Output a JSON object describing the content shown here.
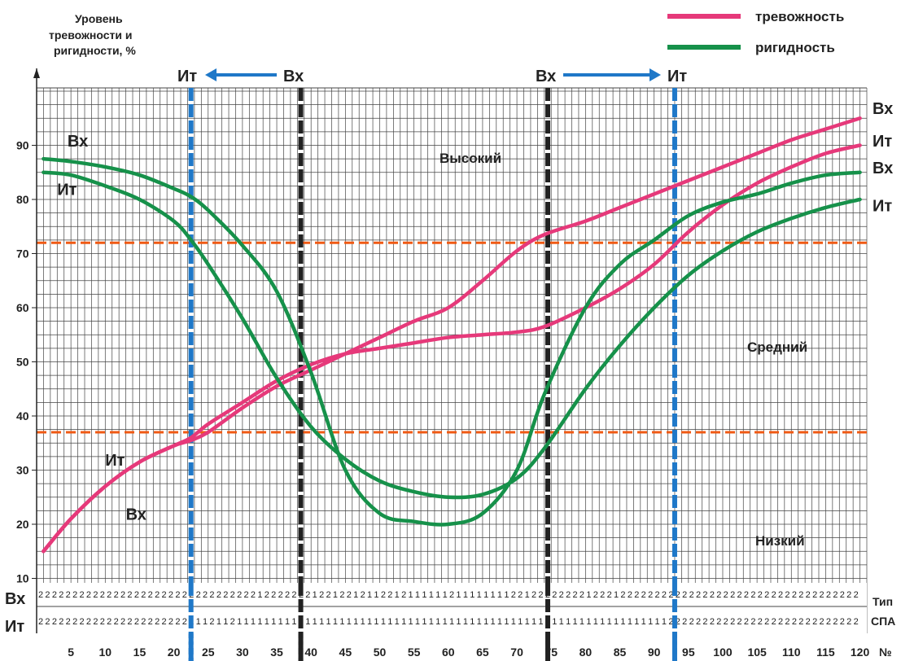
{
  "chart_data": {
    "type": "line",
    "ylabel": "Уровень тревожности и ригидности, %",
    "xlabel": "№",
    "x_ticks": [
      5,
      10,
      15,
      20,
      25,
      30,
      35,
      40,
      45,
      50,
      55,
      60,
      65,
      70,
      75,
      80,
      85,
      90,
      95,
      100,
      105,
      110,
      115,
      120
    ],
    "y_ticks": [
      10,
      20,
      30,
      40,
      50,
      60,
      70,
      80,
      90
    ],
    "xlim": [
      0,
      121
    ],
    "ylim": [
      0,
      100
    ],
    "thresholds": [
      {
        "value": 72,
        "color": "#f05a14"
      },
      {
        "value": 37,
        "color": "#f05a14"
      }
    ],
    "vlines": [
      {
        "x": 22.5,
        "color": "#1f78c8"
      },
      {
        "x": 38.5,
        "color": "#222222"
      },
      {
        "x": 74.5,
        "color": "#222222"
      },
      {
        "x": 93,
        "color": "#1f78c8"
      }
    ],
    "zone_labels": {
      "high": "Высокий",
      "mid": "Средний",
      "low": "Низкий"
    },
    "series": [
      {
        "name": "тревожность",
        "line_label": "Вх",
        "color": "#e6397a",
        "x": [
          1,
          5,
          10,
          15,
          20,
          22.5,
          25,
          30,
          35,
          40,
          45,
          50,
          55,
          60,
          65,
          70,
          74,
          80,
          85,
          90,
          95,
          100,
          105,
          110,
          115,
          120
        ],
        "y": [
          15,
          21,
          27,
          31.5,
          34.5,
          35.5,
          37,
          41.5,
          45.5,
          48.5,
          51.5,
          54.5,
          57.5,
          60,
          65,
          70.5,
          73.5,
          76,
          78.5,
          81,
          83.5,
          86,
          88.5,
          91,
          93,
          95
        ]
      },
      {
        "name": "тревожность",
        "line_label": "Ит",
        "color": "#e6397a",
        "x": [
          1,
          5,
          10,
          15,
          20,
          22.5,
          25,
          30,
          35,
          40,
          45,
          50,
          55,
          60,
          65,
          70,
          74,
          80,
          85,
          90,
          95,
          100,
          105,
          110,
          115,
          120
        ],
        "y": [
          15,
          21,
          27,
          31.5,
          34.5,
          36,
          38.5,
          42.5,
          46.5,
          49.5,
          51.5,
          52.5,
          53.5,
          54.5,
          55,
          55.5,
          56.5,
          60,
          63.5,
          68,
          74,
          79,
          83,
          86,
          88.5,
          90
        ]
      },
      {
        "name": "ригидность",
        "line_label": "Вх",
        "color": "#16914a",
        "x": [
          1,
          5,
          10,
          15,
          20,
          22.5,
          25,
          30,
          35,
          40,
          45,
          50,
          55,
          60,
          65,
          70,
          74,
          80,
          85,
          90,
          95,
          100,
          105,
          110,
          115,
          120
        ],
        "y": [
          87.5,
          87,
          86,
          84.5,
          82,
          80.5,
          78,
          71.5,
          63,
          48,
          30,
          22,
          20.5,
          20,
          22,
          30,
          44,
          60,
          68,
          72.5,
          77,
          79.5,
          81,
          83,
          84.5,
          85
        ]
      },
      {
        "name": "ригидность",
        "line_label": "Ит",
        "color": "#16914a",
        "x": [
          1,
          5,
          10,
          15,
          20,
          22.5,
          25,
          30,
          35,
          40,
          45,
          50,
          55,
          60,
          65,
          70,
          74,
          80,
          85,
          90,
          95,
          100,
          105,
          110,
          115,
          120
        ],
        "y": [
          85,
          84.5,
          82.5,
          80,
          76,
          72.5,
          68,
          58,
          47,
          38,
          32,
          28,
          26,
          25,
          25.5,
          28.5,
          34,
          45,
          53,
          60,
          66,
          70.5,
          74,
          76.5,
          78.5,
          80
        ]
      }
    ],
    "left_labels": [
      {
        "text": "Вх",
        "x": 4.5,
        "y": 91
      },
      {
        "text": "Ит",
        "x": 3,
        "y": 82
      },
      {
        "text": "Ит",
        "x": 10,
        "y": 32
      },
      {
        "text": "Вх",
        "x": 13,
        "y": 22
      }
    ],
    "right_labels": [
      {
        "text": "Вх",
        "y": 97
      },
      {
        "text": "Ит",
        "y": 91
      },
      {
        "text": "Вх",
        "y": 86
      },
      {
        "text": "Ит",
        "y": 79
      }
    ],
    "shift_markers": {
      "left": {
        "from": "Вх",
        "to": "Ит"
      },
      "right": {
        "from": "Вх",
        "to": "Ит"
      }
    },
    "spa_rows": {
      "row_labels": [
        "Вх",
        "Ит"
      ],
      "title_line1": "Тип",
      "title_line2": "СПА",
      "vx": [
        2,
        2,
        2,
        2,
        2,
        2,
        2,
        2,
        2,
        2,
        2,
        2,
        2,
        2,
        2,
        2,
        2,
        2,
        2,
        2,
        2,
        2,
        2,
        2,
        2,
        2,
        2,
        2,
        2,
        2,
        2,
        2,
        1,
        2,
        2,
        2,
        2,
        2,
        2,
        2,
        1,
        2,
        2,
        1,
        2,
        2,
        1,
        2,
        1,
        1,
        2,
        2,
        1,
        2,
        1,
        1,
        1,
        1,
        1,
        1,
        2,
        1,
        1,
        1,
        1,
        1,
        1,
        1,
        1,
        2,
        2,
        1,
        2,
        2,
        2,
        2,
        2,
        2,
        2,
        2,
        1,
        2,
        2,
        2,
        1,
        2,
        2,
        2,
        2,
        2,
        2,
        2,
        2,
        2,
        2,
        2,
        2,
        2,
        2,
        2,
        2,
        2,
        2,
        2,
        2,
        2,
        2,
        2,
        2,
        2,
        2,
        2,
        2,
        2,
        2,
        2,
        2,
        2,
        2,
        2
      ],
      "it": [
        2,
        2,
        2,
        2,
        2,
        2,
        2,
        2,
        2,
        2,
        2,
        2,
        2,
        2,
        2,
        2,
        2,
        2,
        2,
        2,
        2,
        2,
        1,
        1,
        1,
        2,
        1,
        1,
        2,
        1,
        1,
        1,
        1,
        1,
        1,
        1,
        1,
        1,
        2,
        1,
        1,
        1,
        1,
        1,
        1,
        1,
        1,
        1,
        1,
        1,
        1,
        1,
        1,
        1,
        1,
        1,
        1,
        1,
        1,
        1,
        1,
        1,
        1,
        1,
        1,
        1,
        1,
        1,
        1,
        1,
        1,
        1,
        1,
        1,
        1,
        1,
        1,
        1,
        1,
        1,
        1,
        1,
        1,
        1,
        1,
        1,
        1,
        1,
        1,
        1,
        1,
        1,
        2,
        2,
        2,
        2,
        2,
        2,
        2,
        2,
        2,
        2,
        2,
        2,
        2,
        2,
        2,
        2,
        2,
        2,
        2,
        2,
        2,
        2,
        2,
        2,
        2,
        2,
        2,
        2
      ]
    }
  }
}
